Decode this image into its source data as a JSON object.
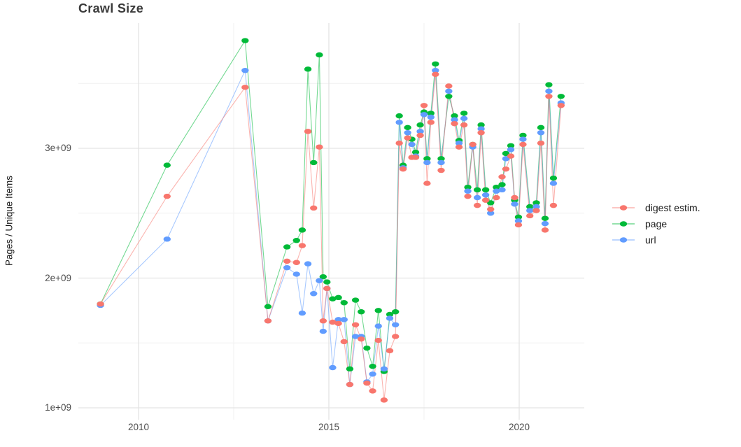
{
  "page": {
    "background_color": "#ffffff",
    "major_grid_color": "#e3e3e3",
    "minor_grid_color": "#f0f0f0"
  },
  "chart_data": {
    "type": "line",
    "title": "Crawl Size",
    "ylabel": "Pages / Unique Items",
    "xlabel": "",
    "grid": true,
    "legend_position": "right",
    "values_unit": "1e+09 (billions)",
    "x_axis": {
      "range": [
        2008.4,
        2021.7
      ],
      "ticks": [
        {
          "value": 2010,
          "label": "2010"
        },
        {
          "value": 2015,
          "label": "2015"
        },
        {
          "value": 2020,
          "label": "2020"
        }
      ],
      "minor_breaks": [
        2012.5,
        2017.5
      ]
    },
    "y_axis": {
      "range_billions": [
        0.9,
        3.97
      ],
      "ticks": [
        {
          "value_billions": 1,
          "label": "1e+09"
        },
        {
          "value_billions": 2,
          "label": "2e+09"
        },
        {
          "value_billions": 3,
          "label": "3e+09"
        }
      ],
      "minor_breaks_billions": [
        1.5,
        2.5,
        3.5
      ]
    },
    "x_years": [
      2009.0,
      2010.75,
      2012.8,
      2013.4,
      2013.9,
      2014.15,
      2014.3,
      2014.45,
      2014.6,
      2014.75,
      2014.85,
      2014.95,
      2015.1,
      2015.25,
      2015.4,
      2015.55,
      2015.7,
      2015.85,
      2016.0,
      2016.15,
      2016.3,
      2016.45,
      2016.6,
      2016.75,
      2016.85,
      2016.95,
      2017.07,
      2017.18,
      2017.28,
      2017.4,
      2017.5,
      2017.58,
      2017.68,
      2017.8,
      2017.95,
      2018.15,
      2018.3,
      2018.42,
      2018.55,
      2018.65,
      2018.78,
      2018.9,
      2019.0,
      2019.12,
      2019.25,
      2019.4,
      2019.55,
      2019.65,
      2019.78,
      2019.88,
      2019.98,
      2020.1,
      2020.28,
      2020.45,
      2020.57,
      2020.68,
      2020.78,
      2020.9,
      2021.1
    ],
    "series": [
      {
        "name": "digest estim.",
        "color": "#F8766D",
        "values_billions": [
          1.8,
          2.63,
          3.47,
          1.67,
          2.13,
          2.12,
          2.25,
          3.13,
          2.54,
          3.01,
          1.67,
          1.92,
          1.66,
          1.65,
          1.51,
          1.18,
          1.64,
          1.53,
          1.19,
          1.13,
          1.52,
          1.06,
          1.44,
          1.55,
          3.04,
          2.84,
          3.08,
          2.93,
          2.93,
          3.1,
          3.33,
          2.73,
          3.2,
          3.57,
          2.83,
          3.48,
          3.19,
          3.01,
          3.18,
          2.63,
          3.03,
          2.56,
          3.12,
          2.6,
          2.53,
          2.62,
          2.78,
          2.84,
          2.94,
          2.62,
          2.41,
          3.03,
          2.48,
          2.52,
          3.04,
          2.37,
          3.4,
          2.56,
          3.33
        ]
      },
      {
        "name": "page",
        "color": "#00BA38",
        "values_billions": [
          1.8,
          2.87,
          3.83,
          1.78,
          2.24,
          2.29,
          2.37,
          3.61,
          2.89,
          3.72,
          2.01,
          1.97,
          1.84,
          1.85,
          1.81,
          1.3,
          1.83,
          1.74,
          1.46,
          1.32,
          1.75,
          1.28,
          1.72,
          1.74,
          3.25,
          2.87,
          3.16,
          3.07,
          2.97,
          3.18,
          3.28,
          2.92,
          3.27,
          3.65,
          2.92,
          3.4,
          3.25,
          3.06,
          3.27,
          2.7,
          3.03,
          2.68,
          3.18,
          2.68,
          2.58,
          2.7,
          2.72,
          2.96,
          3.02,
          2.6,
          2.47,
          3.1,
          2.55,
          2.58,
          3.16,
          2.46,
          3.49,
          2.77,
          3.4
        ]
      },
      {
        "name": "url",
        "color": "#619CFF",
        "values_billions": [
          1.79,
          2.3,
          3.6,
          1.67,
          2.08,
          2.03,
          1.73,
          2.11,
          1.88,
          1.98,
          1.59,
          1.92,
          1.31,
          1.68,
          1.68,
          1.18,
          1.55,
          1.55,
          1.2,
          1.26,
          1.63,
          1.3,
          1.69,
          1.64,
          3.2,
          2.85,
          3.12,
          3.03,
          2.94,
          3.13,
          3.26,
          2.89,
          3.24,
          3.6,
          2.89,
          3.44,
          3.22,
          3.04,
          3.23,
          2.67,
          3.01,
          2.62,
          3.15,
          2.64,
          2.5,
          2.67,
          2.68,
          2.92,
          2.99,
          2.57,
          2.44,
          3.07,
          2.52,
          2.55,
          3.12,
          2.42,
          3.44,
          2.73,
          3.35
        ]
      }
    ]
  }
}
